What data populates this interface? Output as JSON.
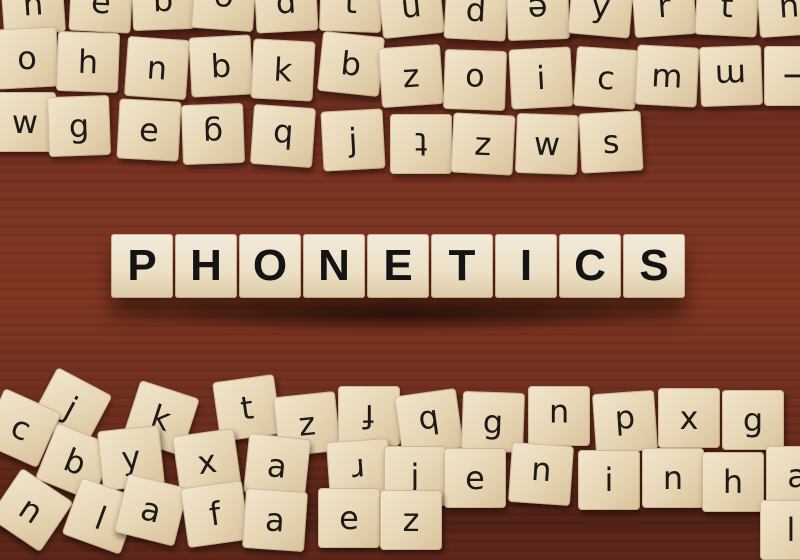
{
  "headline": {
    "letters": [
      "P",
      "H",
      "O",
      "N",
      "E",
      "T",
      "I",
      "C",
      "S"
    ]
  },
  "top_tiles": [
    "n",
    "e",
    "b",
    "e",
    "d",
    "t",
    "u",
    "d",
    "e",
    "y",
    "r",
    "t",
    "h",
    "o",
    "h",
    "n",
    "b",
    "k",
    "b",
    "z",
    "o",
    "i",
    "c",
    "m",
    "m",
    "i",
    "w",
    "g",
    "e",
    "g",
    "b",
    "j",
    "t",
    "z",
    "w",
    "s"
  ],
  "bottom_tiles": [
    "j",
    "k",
    "t",
    "z",
    "f",
    "b",
    "g",
    "u",
    "d",
    "x",
    "g",
    "c",
    "b",
    "y",
    "x",
    "a",
    "r",
    "j",
    "e",
    "u",
    "i",
    "n",
    "h",
    "a",
    "n",
    "l",
    "a",
    "f",
    "a",
    "e",
    "z",
    "l"
  ]
}
